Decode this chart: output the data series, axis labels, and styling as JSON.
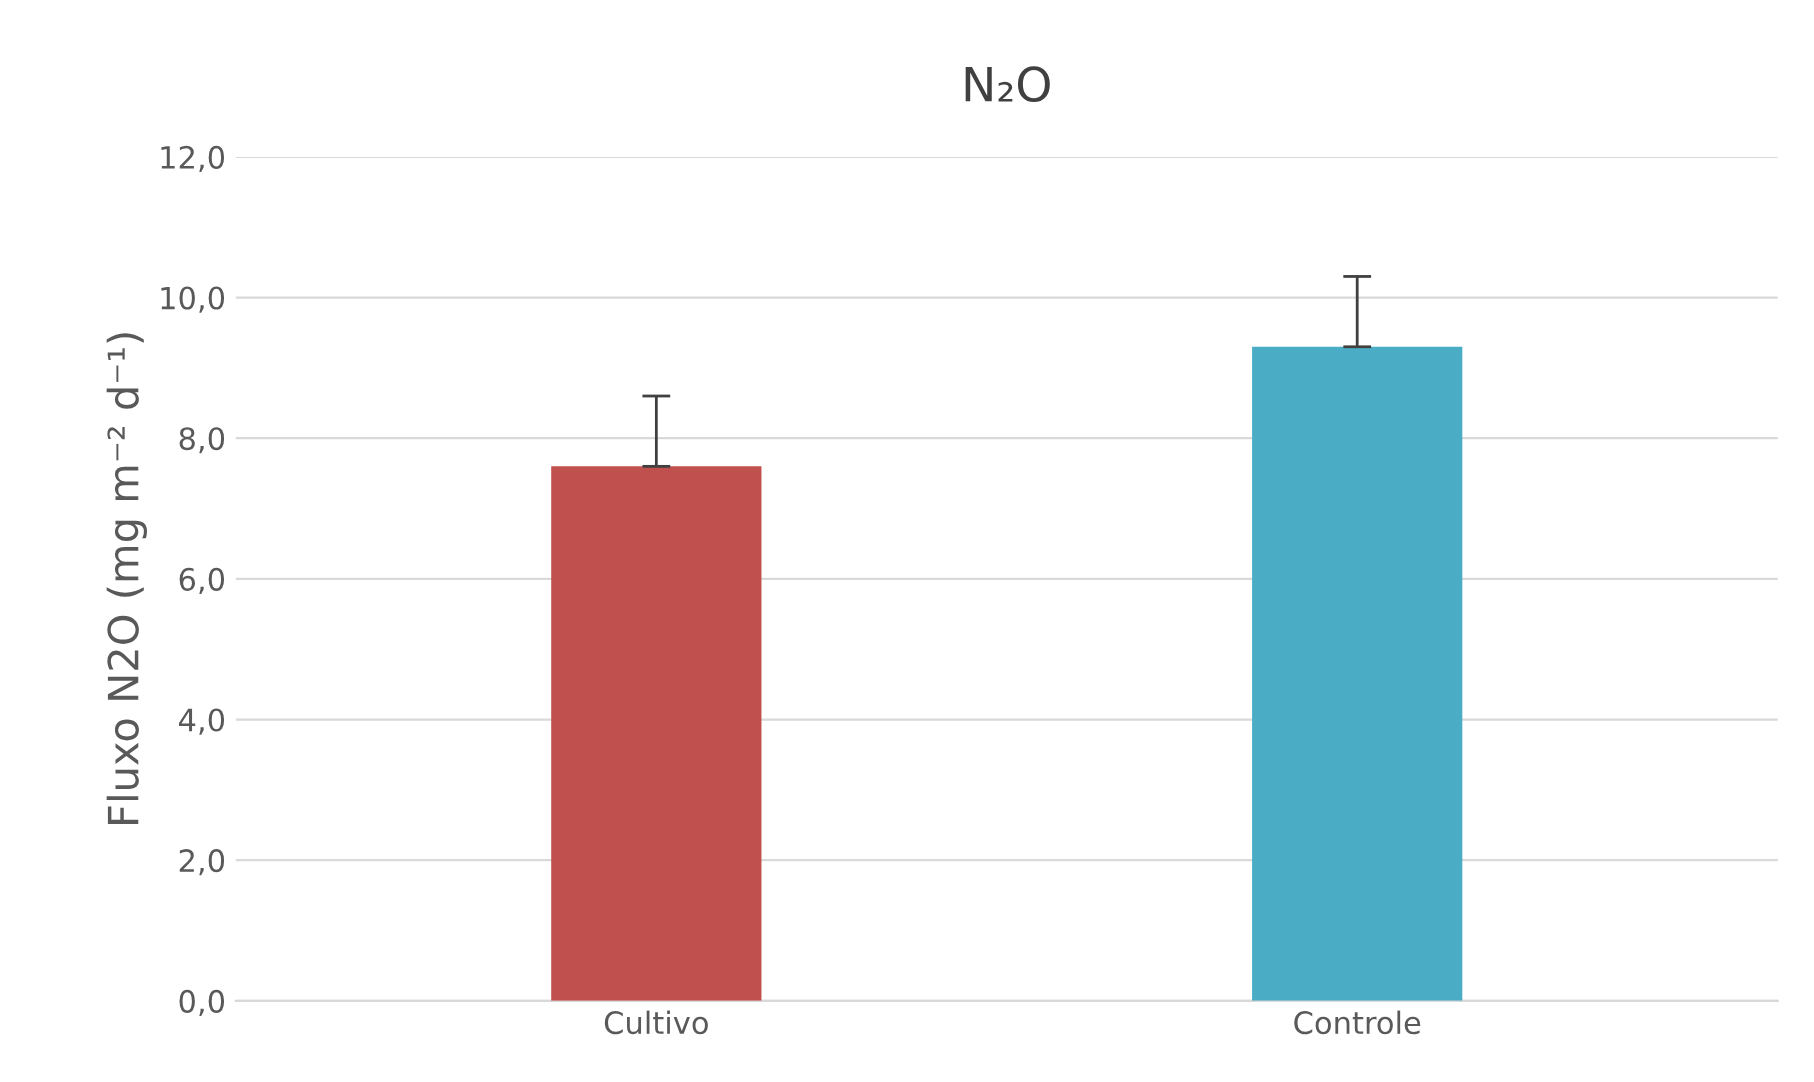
{
  "chart_data": {
    "type": "bar",
    "title": "N₂O",
    "ylabel": "Fluxo N2O (mg m⁻² d⁻¹)",
    "categories": [
      "Cultivo",
      "Controle"
    ],
    "values": [
      7.6,
      9.3
    ],
    "colors": [
      "#c0504d",
      "#4bacc6"
    ],
    "errors": [
      [
        7.6,
        8.6
      ],
      [
        9.3,
        10.3
      ]
    ],
    "ylim": [
      0,
      12
    ],
    "yticks": [
      {
        "value": 0,
        "label": "0,0"
      },
      {
        "value": 2,
        "label": "2,0"
      },
      {
        "value": 4,
        "label": "4,0"
      },
      {
        "value": 6,
        "label": "6,0"
      },
      {
        "value": 8,
        "label": "8,0"
      },
      {
        "value": 10,
        "label": "10,0"
      },
      {
        "value": 12,
        "label": "12,0"
      }
    ],
    "grid": "y"
  }
}
